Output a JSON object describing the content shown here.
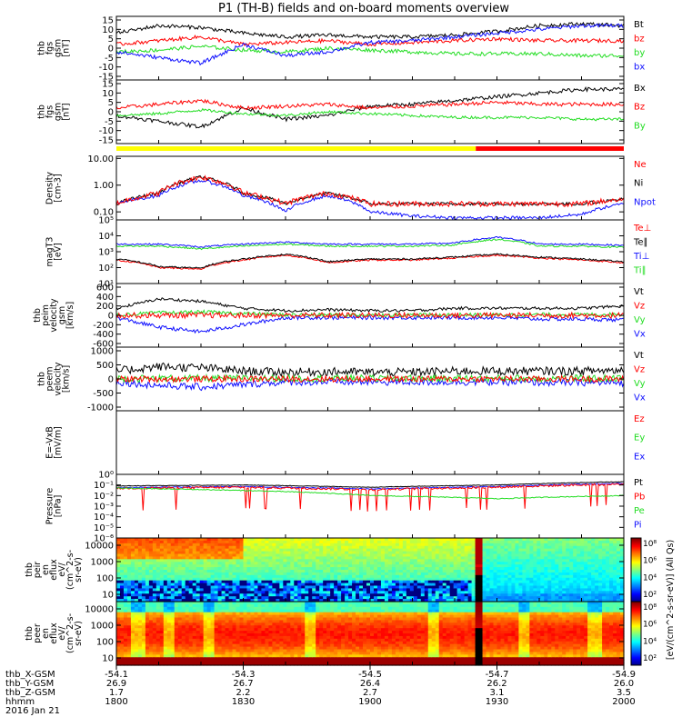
{
  "title": "P1 (TH-B) fields and on-board moments overview",
  "colors": {
    "black": "#000000",
    "red": "#ff0000",
    "green": "#22dd22",
    "blue": "#1010ff",
    "mode_yellow": "#ffff00",
    "mode_red": "#ff0000"
  },
  "panels": [
    {
      "id": "fgs_gsm",
      "ylabel": [
        "thb",
        "fgs",
        "gsm",
        "[nT]"
      ],
      "ticks": [
        "15",
        "10",
        "5",
        "0",
        "-5",
        "-10",
        "-15"
      ],
      "tick_vals": [
        15,
        10,
        5,
        0,
        -5,
        -10,
        -15
      ],
      "legend": [
        {
          "text": "Bt",
          "color": "black"
        },
        {
          "text": "bz",
          "color": "red"
        },
        {
          "text": "by",
          "color": "green"
        },
        {
          "text": "bx",
          "color": "blue"
        }
      ]
    },
    {
      "id": "fgs_gsm2",
      "ylabel": [
        "thb",
        "fgs",
        "gsm",
        "[nT]"
      ],
      "ticks": [
        "15",
        "10",
        "5",
        "0",
        "-5",
        "-10",
        "-15"
      ],
      "tick_vals": [
        15,
        10,
        5,
        0,
        -5,
        -10,
        -15
      ],
      "legend": [
        {
          "text": "Bx",
          "color": "black"
        },
        {
          "text": "Bz",
          "color": "red"
        },
        {
          "text": "By",
          "color": "green"
        }
      ]
    },
    {
      "id": "density",
      "ylabel": [
        "Density",
        "[cm-3]"
      ],
      "ticks": [
        "10.00",
        "1.00",
        "0.10"
      ],
      "tick_vals": [
        10,
        1,
        0.1
      ],
      "legend": [
        {
          "text": "Ne",
          "color": "red"
        },
        {
          "text": "Ni",
          "color": "black"
        },
        {
          "text": "Npot",
          "color": "blue"
        }
      ]
    },
    {
      "id": "temperature",
      "ylabel": [
        "magT3",
        "[eV]"
      ],
      "ticks": [
        "10⁵",
        "10⁴",
        "10³",
        "10²",
        "10¹"
      ],
      "tick_vals": [
        5,
        4,
        3,
        2,
        1
      ],
      "legend": [
        {
          "text": "Te⊥",
          "color": "red"
        },
        {
          "text": "Te∥",
          "color": "black"
        },
        {
          "text": "Ti⊥",
          "color": "blue"
        },
        {
          "text": "Ti∥",
          "color": "green"
        }
      ]
    },
    {
      "id": "peim_velocity",
      "ylabel": [
        "thb",
        "peim",
        "velocity",
        "gsm",
        "[km/s]"
      ],
      "ticks": [
        "600",
        "400",
        "200",
        "0",
        "-200",
        "-400",
        "-600"
      ],
      "tick_vals": [
        600,
        400,
        200,
        0,
        -200,
        -400,
        -600
      ],
      "legend": [
        {
          "text": "Vt",
          "color": "black"
        },
        {
          "text": "Vz",
          "color": "red"
        },
        {
          "text": "Vy",
          "color": "green"
        },
        {
          "text": "Vx",
          "color": "blue"
        }
      ]
    },
    {
      "id": "peem_velocity",
      "ylabel": [
        "thb",
        "peem",
        "velocity",
        "[km/s]"
      ],
      "ticks": [
        "1000",
        "500",
        "0",
        "-500",
        "-1000"
      ],
      "tick_vals": [
        1000,
        500,
        0,
        -500,
        -1000
      ],
      "legend": [
        {
          "text": "Vt",
          "color": "black"
        },
        {
          "text": "Vz",
          "color": "red"
        },
        {
          "text": "Vy",
          "color": "green"
        },
        {
          "text": "Vx",
          "color": "blue"
        }
      ]
    },
    {
      "id": "efield",
      "ylabel": [
        "E=-VxB",
        "[mV/m]"
      ],
      "ticks": [],
      "tick_vals": [],
      "legend": [
        {
          "text": "Ez",
          "color": "red"
        },
        {
          "text": "Ey",
          "color": "green"
        },
        {
          "text": "Ex",
          "color": "blue"
        }
      ]
    },
    {
      "id": "pressure",
      "ylabel": [
        "Pressure",
        "[nPa]"
      ],
      "ticks": [
        "10⁰",
        "10⁻¹",
        "10⁻²",
        "10⁻³",
        "10⁻⁴",
        "10⁻⁵",
        "10⁻⁶"
      ],
      "tick_vals": [
        0,
        -1,
        -2,
        -3,
        -4,
        -5,
        -6
      ],
      "legend": [
        {
          "text": "Pt",
          "color": "black"
        },
        {
          "text": "Pb",
          "color": "red"
        },
        {
          "text": "Pe",
          "color": "green"
        },
        {
          "text": "Pi",
          "color": "blue"
        }
      ]
    },
    {
      "id": "peir_eflux",
      "ylabel": [
        "thb",
        "peir",
        "en",
        "eflux",
        "eV/",
        "(cm^2-s-",
        "sr-eV)"
      ],
      "ticks": [
        "10000",
        "1000",
        "100",
        "10"
      ],
      "tick_vals": [
        10000,
        1000,
        100,
        10
      ],
      "legend": []
    },
    {
      "id": "peer_eflux",
      "ylabel": [
        "thb",
        "peer",
        "en",
        "eflux",
        "eV/",
        "(cm^2-s-",
        "sr-eV)"
      ],
      "ticks": [
        "10000",
        "1000",
        "100",
        "10"
      ],
      "tick_vals": [
        10000,
        1000,
        100,
        10
      ],
      "legend": []
    }
  ],
  "colorbar": {
    "ticks": [
      "10⁸",
      "10⁶",
      "10⁴",
      "10²",
      "10⁸",
      "10⁶",
      "10⁴",
      "10²"
    ],
    "label": "[eV/(cm^2-s-sr-eV)] (All Qs)"
  },
  "orbit": {
    "row_labels": [
      "thb_X-GSM",
      "thb_Y-GSM",
      "thb_Z-GSM",
      "hhmm"
    ],
    "date": "2016 Jan 21",
    "columns": [
      [
        "-54.1",
        "26.9",
        "1.7",
        "1800"
      ],
      [
        "-54.3",
        "26.7",
        "2.2",
        "1830"
      ],
      [
        "-54.5",
        "26.4",
        "2.7",
        "1900"
      ],
      [
        "-54.7",
        "26.2",
        "3.1",
        "1930"
      ],
      [
        "-54.9",
        "26.0",
        "3.5",
        "2000"
      ]
    ]
  },
  "chart_data": {
    "type": "line",
    "title": "P1 (TH-B) fields and on-board moments overview",
    "x_unit": "hhmm (2016 Jan 21)",
    "xlim": [
      "1800",
      "2000"
    ],
    "x_ticks": [
      "1800",
      "1830",
      "1900",
      "1930",
      "2000"
    ],
    "mode_bar": [
      {
        "from": "1800",
        "to": "1925",
        "color": "yellow"
      },
      {
        "from": "1925",
        "to": "2000",
        "color": "red"
      }
    ],
    "data_gap": {
      "from": "1924",
      "to": "1926"
    },
    "series": [
      {
        "panel": "fgs_gsm",
        "name": "Bt",
        "color": "black",
        "x": [
          "1800",
          "1810",
          "1820",
          "1830",
          "1840",
          "1850",
          "1900",
          "1910",
          "1920",
          "1930",
          "1940",
          "1950",
          "2000"
        ],
        "y": [
          8,
          12,
          11,
          8,
          6,
          7,
          6,
          6,
          7,
          9,
          12,
          13,
          12
        ]
      },
      {
        "panel": "fgs_gsm",
        "name": "bz",
        "color": "red",
        "x": [
          "1800",
          "1810",
          "1820",
          "1830",
          "1840",
          "1850",
          "1900",
          "1910",
          "1920",
          "1930",
          "1940",
          "1950",
          "2000"
        ],
        "y": [
          2,
          4,
          6,
          2,
          3,
          4,
          2,
          3,
          4,
          5,
          4,
          4,
          4
        ]
      },
      {
        "panel": "fgs_gsm",
        "name": "by",
        "color": "green",
        "x": [
          "1800",
          "1810",
          "1820",
          "1830",
          "1840",
          "1850",
          "1900",
          "1910",
          "1920",
          "1930",
          "1940",
          "1950",
          "2000"
        ],
        "y": [
          -2,
          -1,
          1,
          -1,
          -2,
          0,
          -1,
          -2,
          -3,
          -3,
          -3,
          -4,
          -4
        ]
      },
      {
        "panel": "fgs_gsm",
        "name": "bx",
        "color": "blue",
        "x": [
          "1800",
          "1810",
          "1820",
          "1830",
          "1840",
          "1850",
          "1900",
          "1910",
          "1920",
          "1930",
          "1940",
          "1950",
          "2000"
        ],
        "y": [
          -2,
          -5,
          -8,
          2,
          -4,
          -2,
          3,
          4,
          6,
          8,
          10,
          12,
          12
        ]
      },
      {
        "panel": "density",
        "name": "Ni",
        "color": "black",
        "x": [
          "1800",
          "1810",
          "1820",
          "1830",
          "1840",
          "1850",
          "1900",
          "1910",
          "1920",
          "1930",
          "1940",
          "1950",
          "2000"
        ],
        "y": [
          0.2,
          0.5,
          2.0,
          0.5,
          0.2,
          0.5,
          0.2,
          0.2,
          0.2,
          0.2,
          0.2,
          0.2,
          0.3
        ]
      },
      {
        "panel": "density",
        "name": "Npot",
        "color": "blue",
        "x": [
          "1800",
          "1810",
          "1820",
          "1830",
          "1840",
          "1850",
          "1900",
          "1910",
          "1920",
          "1930",
          "1940",
          "1950",
          "2000"
        ],
        "y": [
          0.2,
          0.4,
          1.5,
          0.4,
          0.1,
          0.4,
          0.1,
          0.07,
          0.06,
          0.06,
          0.06,
          0.08,
          0.2
        ]
      },
      {
        "panel": "temperature",
        "name": "Ti⊥",
        "color": "blue",
        "x": [
          "1800",
          "1810",
          "1820",
          "1830",
          "1840",
          "1850",
          "1900",
          "1910",
          "1920",
          "1930",
          "1940",
          "1950",
          "2000"
        ],
        "y": [
          3000,
          3000,
          2000,
          3000,
          4000,
          3000,
          3000,
          3000,
          3500,
          8000,
          3000,
          3000,
          2500
        ]
      },
      {
        "panel": "temperature",
        "name": "Te⊥",
        "color": "red",
        "x": [
          "1800",
          "1810",
          "1820",
          "1830",
          "1840",
          "1850",
          "1900",
          "1910",
          "1920",
          "1930",
          "1940",
          "1950",
          "2000"
        ],
        "y": [
          300,
          100,
          80,
          300,
          600,
          200,
          300,
          300,
          400,
          600,
          400,
          300,
          200
        ]
      },
      {
        "panel": "peim_velocity",
        "name": "Vt",
        "color": "black",
        "x": [
          "1800",
          "1810",
          "1820",
          "1830",
          "1840",
          "1850",
          "1900",
          "1910",
          "1920",
          "1930",
          "1940",
          "1950",
          "2000"
        ],
        "y": [
          150,
          350,
          300,
          150,
          100,
          120,
          100,
          100,
          150,
          150,
          150,
          150,
          200
        ]
      },
      {
        "panel": "peim_velocity",
        "name": "Vx",
        "color": "blue",
        "x": [
          "1800",
          "1810",
          "1820",
          "1830",
          "1840",
          "1850",
          "1900",
          "1910",
          "1920",
          "1930",
          "1940",
          "1950",
          "2000"
        ],
        "y": [
          -50,
          -250,
          -350,
          -200,
          -50,
          -50,
          -50,
          -50,
          -50,
          -50,
          -80,
          -80,
          -100
        ]
      },
      {
        "panel": "pressure",
        "name": "Pt",
        "color": "black",
        "x": [
          "1800",
          "1830",
          "1900",
          "1930",
          "2000"
        ],
        "y": [
          0.08,
          0.1,
          0.06,
          0.1,
          0.2
        ]
      },
      {
        "panel": "pressure",
        "name": "Pe",
        "color": "green",
        "x": [
          "1800",
          "1830",
          "1900",
          "1930",
          "2000"
        ],
        "y": [
          0.05,
          0.03,
          0.01,
          0.005,
          0.01
        ]
      }
    ]
  }
}
